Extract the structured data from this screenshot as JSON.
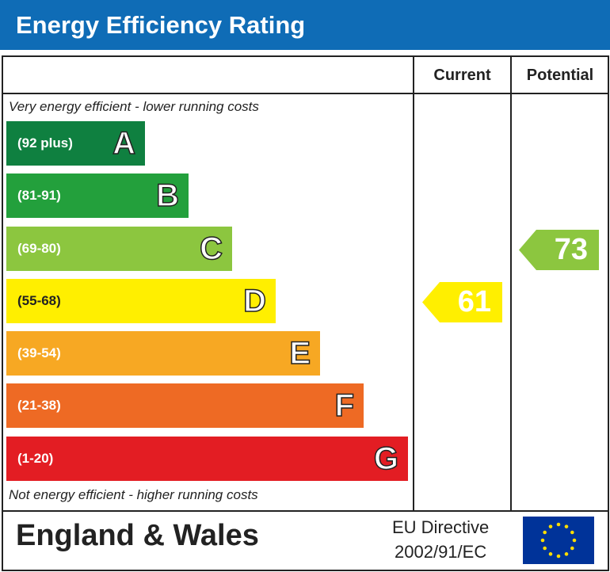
{
  "title": "Energy Efficiency Rating",
  "headers": {
    "current": "Current",
    "potential": "Potential"
  },
  "top_note": "Very energy efficient - lower running costs",
  "bottom_note": "Not energy efficient - higher running costs",
  "footer": {
    "country": "England & Wales",
    "directive_line1": "EU Directive",
    "directive_line2": "2002/91/EC"
  },
  "colors": {
    "header": "#0f6cb6",
    "A": "#0f8040",
    "B": "#23a03c",
    "C": "#8cc63f",
    "D": "#ffef00",
    "E": "#f7a823",
    "F": "#ee6a24",
    "G": "#e31d23",
    "flag": "#003399",
    "stars": "#ffdd00"
  },
  "chart_data": {
    "type": "bar",
    "categories": [
      "A",
      "B",
      "C",
      "D",
      "E",
      "F",
      "G"
    ],
    "ranges": [
      "(92 plus)",
      "(81-91)",
      "(69-80)",
      "(55-68)",
      "(39-54)",
      "(21-38)",
      "(1-20)"
    ],
    "current": {
      "value": 61,
      "band": "D"
    },
    "potential": {
      "value": 73,
      "band": "C"
    }
  }
}
